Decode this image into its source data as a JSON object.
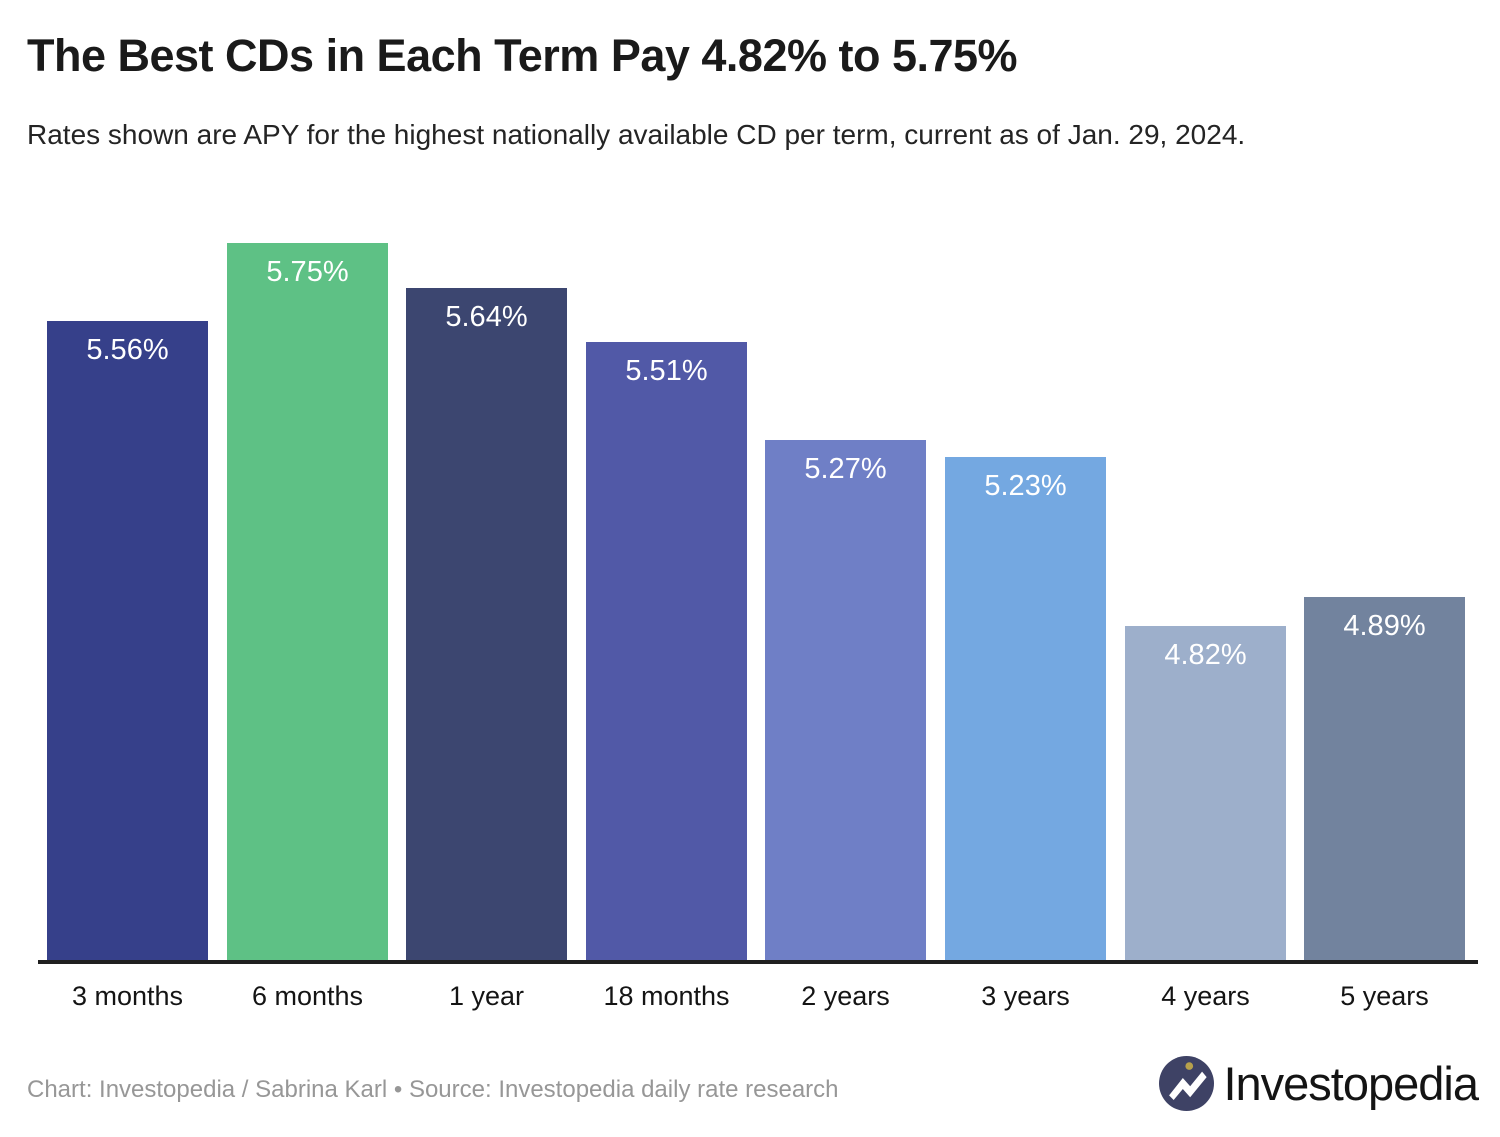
{
  "header": {
    "title": "The Best CDs in Each Term Pay 4.82% to 5.75%",
    "subtitle": "Rates shown are APY for the highest nationally available CD per term, current as of Jan. 29, 2024."
  },
  "chart_data": {
    "type": "bar",
    "title": "The Best CDs in Each Term Pay 4.82% to 5.75%",
    "subtitle": "Rates shown are APY for the highest nationally available CD per term, current as of Jan. 29, 2024.",
    "categories": [
      "3 months",
      "6 months",
      "1 year",
      "18 months",
      "2 years",
      "3 years",
      "4 years",
      "5 years"
    ],
    "values": [
      5.56,
      5.75,
      5.64,
      5.51,
      5.27,
      5.23,
      4.82,
      4.89
    ],
    "value_labels": [
      "5.56%",
      "5.75%",
      "5.64%",
      "5.51%",
      "5.27%",
      "5.23%",
      "4.82%",
      "4.89%"
    ],
    "bar_colors": [
      "#36408A",
      "#5EC185",
      "#3C4670",
      "#5159A7",
      "#6F7FC6",
      "#74A8E1",
      "#9DAFCB",
      "#72839E"
    ],
    "xlabel": "",
    "ylabel": "",
    "ylim": [
      4.0,
      5.75
    ],
    "grid": false,
    "legend": false,
    "data_labels": true,
    "data_label_color": "#ffffff",
    "axis_line_color": "#1f1f1f"
  },
  "footer": {
    "credit": "Chart: Investopedia / Sabrina Karl • Source: Investopedia daily rate research",
    "logo": {
      "text": "Investopedia",
      "icon": "investopedia-mark-icon",
      "icon_bg": "#3E4265",
      "icon_glyph": "#ffffff",
      "icon_dot": "#B7A14C"
    }
  }
}
